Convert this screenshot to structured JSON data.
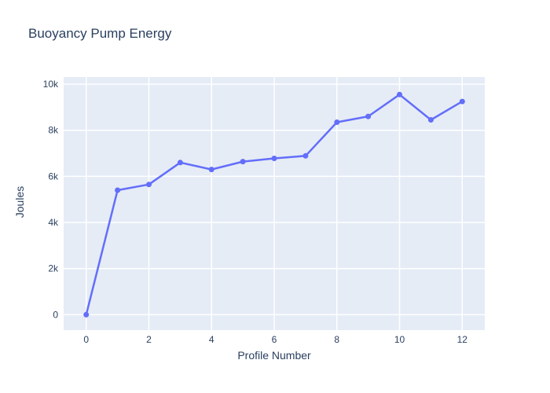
{
  "figure": {
    "title": "Buoyancy Pump Energy"
  },
  "chart_data": {
    "type": "line",
    "title": "Buoyancy Pump Energy",
    "xlabel": "Profile Number",
    "ylabel": "Joules",
    "x": [
      0,
      1,
      2,
      3,
      4,
      5,
      6,
      7,
      8,
      9,
      10,
      11,
      12
    ],
    "y": [
      0,
      5400,
      5650,
      6600,
      6300,
      6640,
      6780,
      6890,
      8350,
      8600,
      9550,
      8450,
      9250
    ],
    "xlim": [
      -0.72,
      12.72
    ],
    "ylim": [
      -670,
      10310
    ],
    "x_ticks": [
      {
        "value": 0,
        "label": "0"
      },
      {
        "value": 2,
        "label": "2"
      },
      {
        "value": 4,
        "label": "4"
      },
      {
        "value": 6,
        "label": "6"
      },
      {
        "value": 8,
        "label": "8"
      },
      {
        "value": 10,
        "label": "10"
      },
      {
        "value": 12,
        "label": "12"
      }
    ],
    "y_ticks": [
      {
        "value": 0,
        "label": "0"
      },
      {
        "value": 2000,
        "label": "2k"
      },
      {
        "value": 4000,
        "label": "4k"
      },
      {
        "value": 6000,
        "label": "6k"
      },
      {
        "value": 8000,
        "label": "8k"
      },
      {
        "value": 10000,
        "label": "10k"
      }
    ],
    "grid": true,
    "legend": "none",
    "marker": "circle",
    "colors": {
      "line": "#636efa",
      "marker": "#636efa",
      "plot_background": "#e5ecf6",
      "gridline": "#ffffff",
      "text": "#2a3f5f",
      "paper_background": "#ffffff"
    }
  }
}
